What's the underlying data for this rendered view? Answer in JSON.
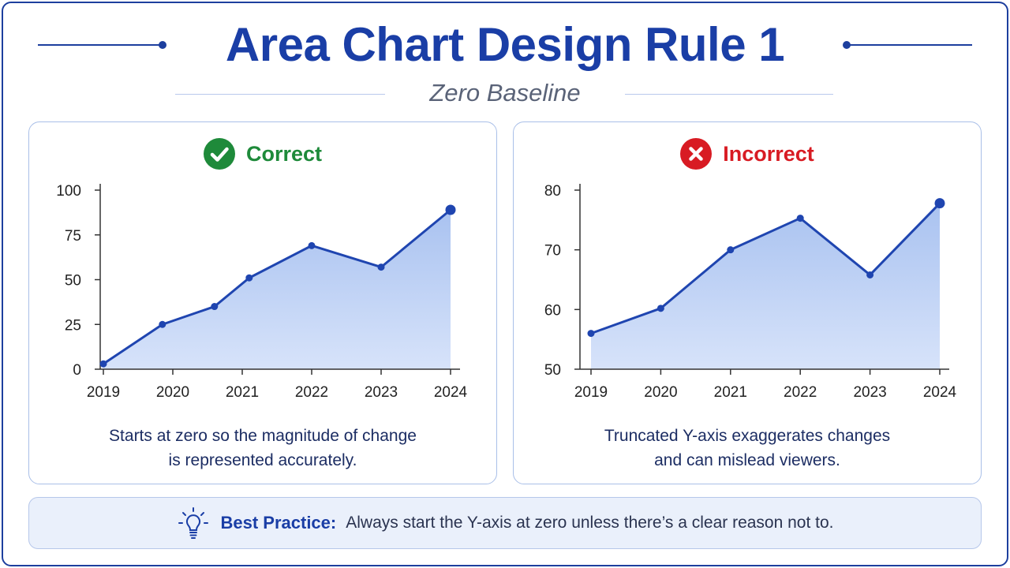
{
  "header": {
    "title": "Area Chart Design Rule 1",
    "subtitle": "Zero Baseline"
  },
  "panels": {
    "left": {
      "verdict": "Correct",
      "verdict_icon": "check-circle-icon",
      "verdict_color": "#1e8a3a",
      "caption_lines": [
        "Starts at zero so the magnitude of change",
        "is represented accurately."
      ]
    },
    "right": {
      "verdict": "Incorrect",
      "verdict_icon": "x-circle-icon",
      "verdict_color": "#d81b23",
      "caption_lines": [
        "Truncated Y-axis exaggerates changes",
        "and can mislead viewers."
      ]
    }
  },
  "best_practice": {
    "icon": "lightbulb-icon",
    "label": "Best Practice:",
    "text": "Always start the Y-axis at zero unless there’s a clear reason not to."
  },
  "colors": {
    "accent": "#1a3ea6",
    "line": "#1f45b0",
    "area_top": "#a9c2f0",
    "area_bottom": "#d7e3fa"
  },
  "chart_data": [
    {
      "type": "area",
      "title": "",
      "xlabel": "",
      "ylabel": "",
      "x": [
        "2019",
        "2020",
        "2021",
        "2022",
        "2023",
        "2024"
      ],
      "x_positions": [
        2019.0,
        2019.85,
        2020.6,
        2021.0,
        2022.0,
        2023.0,
        2024.0
      ],
      "series": [
        {
          "points": [
            {
              "x": 2019.0,
              "y": 3
            },
            {
              "x": 2019.85,
              "y": 25
            },
            {
              "x": 2020.6,
              "y": 35
            },
            {
              "x": 2021.1,
              "y": 51
            },
            {
              "x": 2022.0,
              "y": 69
            },
            {
              "x": 2023.0,
              "y": 57
            },
            {
              "x": 2024.0,
              "y": 89
            }
          ]
        }
      ],
      "ylim": [
        0,
        100
      ],
      "yticks": [
        0,
        25,
        50,
        75,
        100
      ],
      "grid": false,
      "legend": "none"
    },
    {
      "type": "area",
      "title": "",
      "xlabel": "",
      "ylabel": "",
      "x": [
        "2019",
        "2020",
        "2021",
        "2022",
        "2023",
        "2024"
      ],
      "series": [
        {
          "points": [
            {
              "x": 2019,
              "y": 56
            },
            {
              "x": 2020,
              "y": 60.2
            },
            {
              "x": 2021,
              "y": 70
            },
            {
              "x": 2022,
              "y": 75.3
            },
            {
              "x": 2023,
              "y": 65.8
            },
            {
              "x": 2024,
              "y": 77.8
            }
          ]
        }
      ],
      "ylim": [
        50,
        80
      ],
      "yticks": [
        50,
        60,
        70,
        80
      ],
      "grid": false,
      "legend": "none"
    }
  ]
}
